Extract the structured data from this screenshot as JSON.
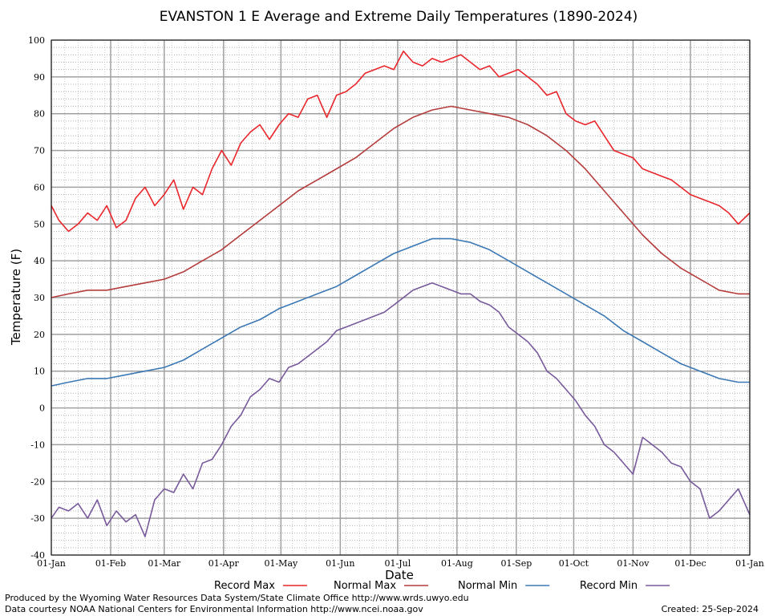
{
  "chart_data": {
    "type": "line",
    "title": "EVANSTON 1 E Average and Extreme Daily Temperatures (1890-2024)",
    "xlabel": "Date",
    "ylabel": "Temperature (F)",
    "ylim": [
      -40,
      100
    ],
    "yticks": [
      "-40",
      "-30",
      "-20",
      "-10",
      "0",
      "10",
      "20",
      "30",
      "40",
      "50",
      "60",
      "70",
      "80",
      "90",
      "100"
    ],
    "xlim": [
      1,
      366
    ],
    "xticks": [
      {
        "day": 1,
        "label": "01-Jan"
      },
      {
        "day": 32,
        "label": "01-Feb"
      },
      {
        "day": 60,
        "label": "01-Mar"
      },
      {
        "day": 91,
        "label": "01-Apr"
      },
      {
        "day": 121,
        "label": "01-May"
      },
      {
        "day": 152,
        "label": "01-Jun"
      },
      {
        "day": 182,
        "label": "01-Jul"
      },
      {
        "day": 213,
        "label": "01-Aug"
      },
      {
        "day": 244,
        "label": "01-Sep"
      },
      {
        "day": 274,
        "label": "01-Oct"
      },
      {
        "day": 305,
        "label": "01-Nov"
      },
      {
        "day": 335,
        "label": "01-Dec"
      },
      {
        "day": 366,
        "label": "01-Jan"
      }
    ],
    "grid": true,
    "legend_position": "bottom",
    "x_unit": "day of year",
    "series": [
      {
        "name": "Record Max",
        "color": "#e8262b",
        "x": [
          1,
          5,
          10,
          15,
          20,
          25,
          30,
          35,
          40,
          45,
          50,
          55,
          60,
          65,
          70,
          75,
          80,
          85,
          90,
          95,
          100,
          105,
          110,
          115,
          120,
          125,
          130,
          135,
          140,
          145,
          150,
          155,
          160,
          165,
          170,
          175,
          180,
          185,
          190,
          195,
          200,
          205,
          210,
          215,
          220,
          225,
          230,
          235,
          240,
          245,
          250,
          255,
          260,
          265,
          270,
          275,
          280,
          285,
          290,
          295,
          300,
          305,
          310,
          315,
          320,
          325,
          330,
          335,
          340,
          345,
          350,
          355,
          360,
          366
        ],
        "values": [
          55,
          51,
          48,
          50,
          53,
          51,
          55,
          49,
          51,
          57,
          60,
          55,
          58,
          62,
          54,
          60,
          58,
          65,
          70,
          66,
          72,
          75,
          77,
          73,
          77,
          80,
          79,
          84,
          85,
          79,
          85,
          86,
          88,
          91,
          92,
          93,
          92,
          97,
          94,
          93,
          95,
          94,
          95,
          96,
          94,
          92,
          93,
          90,
          91,
          92,
          90,
          88,
          85,
          86,
          80,
          78,
          77,
          78,
          74,
          70,
          69,
          68,
          65,
          64,
          63,
          62,
          60,
          58,
          57,
          56,
          55,
          53,
          50,
          53
        ]
      },
      {
        "name": "Normal Max",
        "color": "#b43c3c",
        "x": [
          1,
          10,
          20,
          30,
          40,
          50,
          60,
          70,
          80,
          90,
          100,
          110,
          120,
          130,
          140,
          150,
          160,
          170,
          180,
          190,
          200,
          210,
          220,
          230,
          240,
          250,
          260,
          270,
          280,
          290,
          300,
          310,
          320,
          330,
          340,
          350,
          360,
          366
        ],
        "values": [
          30,
          31,
          32,
          32,
          33,
          34,
          35,
          37,
          40,
          43,
          47,
          51,
          55,
          59,
          62,
          65,
          68,
          72,
          76,
          79,
          81,
          82,
          81,
          80,
          79,
          77,
          74,
          70,
          65,
          59,
          53,
          47,
          42,
          38,
          35,
          32,
          31,
          31
        ]
      },
      {
        "name": "Normal Min",
        "color": "#3c78b4",
        "x": [
          1,
          10,
          20,
          30,
          40,
          50,
          60,
          70,
          80,
          90,
          100,
          110,
          120,
          130,
          140,
          150,
          160,
          170,
          180,
          190,
          200,
          210,
          220,
          230,
          240,
          250,
          260,
          270,
          280,
          290,
          300,
          310,
          320,
          330,
          340,
          350,
          360,
          366
        ],
        "values": [
          6,
          7,
          8,
          8,
          9,
          10,
          11,
          13,
          16,
          19,
          22,
          24,
          27,
          29,
          31,
          33,
          36,
          39,
          42,
          44,
          46,
          46,
          45,
          43,
          40,
          37,
          34,
          31,
          28,
          25,
          21,
          18,
          15,
          12,
          10,
          8,
          7,
          7
        ]
      },
      {
        "name": "Record Min",
        "color": "#785a9b",
        "x": [
          1,
          5,
          10,
          15,
          20,
          25,
          30,
          35,
          40,
          45,
          50,
          55,
          60,
          65,
          70,
          75,
          80,
          85,
          90,
          95,
          100,
          105,
          110,
          115,
          120,
          125,
          130,
          135,
          140,
          145,
          150,
          155,
          160,
          165,
          170,
          175,
          180,
          185,
          190,
          195,
          200,
          205,
          210,
          215,
          220,
          225,
          230,
          235,
          240,
          245,
          250,
          255,
          260,
          265,
          270,
          275,
          280,
          285,
          290,
          295,
          300,
          305,
          310,
          315,
          320,
          325,
          330,
          335,
          340,
          345,
          350,
          355,
          360,
          366
        ],
        "values": [
          -30,
          -27,
          -28,
          -26,
          -30,
          -25,
          -32,
          -28,
          -31,
          -29,
          -35,
          -25,
          -22,
          -23,
          -18,
          -22,
          -15,
          -14,
          -10,
          -5,
          -2,
          3,
          5,
          8,
          7,
          11,
          12,
          14,
          16,
          18,
          21,
          22,
          23,
          24,
          25,
          26,
          28,
          30,
          32,
          33,
          34,
          33,
          32,
          31,
          31,
          29,
          28,
          26,
          22,
          20,
          18,
          15,
          10,
          8,
          5,
          2,
          -2,
          -5,
          -10,
          -12,
          -15,
          -18,
          -8,
          -10,
          -12,
          -15,
          -16,
          -20,
          -22,
          -30,
          -28,
          -25,
          -22,
          -29
        ]
      }
    ]
  },
  "footer": {
    "produced_by": "Produced by the Wyoming Water Resources Data System/State Climate Office http://www.wrds.uwyo.edu",
    "courtesy": "Data courtesy NOAA National Centers for Environmental Information http://www.ncei.noaa.gov",
    "created": "Created:  25-Sep-2024"
  }
}
